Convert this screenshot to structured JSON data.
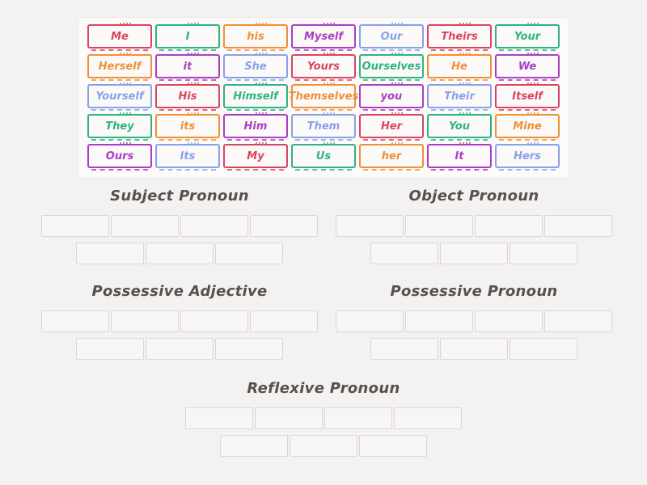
{
  "page": {
    "background": "#f4f2f1",
    "panel_background": "#fcfbfa"
  },
  "palette": {
    "red": "#d9455f",
    "green": "#2db482",
    "orange": "#ef9036",
    "purple": "#aa3ec3",
    "blue": "#88a0ea",
    "slot_border": "#dad6d4",
    "heading_text": "#56514f"
  },
  "word_bank": {
    "tiles": [
      {
        "label": "Me",
        "color": "red"
      },
      {
        "label": "I",
        "color": "green"
      },
      {
        "label": "his",
        "color": "orange"
      },
      {
        "label": "Myself",
        "color": "purple"
      },
      {
        "label": "Our",
        "color": "blue"
      },
      {
        "label": "Theirs",
        "color": "red"
      },
      {
        "label": "Your",
        "color": "green"
      },
      {
        "label": "Herself",
        "color": "orange"
      },
      {
        "label": "it",
        "color": "purple"
      },
      {
        "label": "She",
        "color": "blue"
      },
      {
        "label": "Yours",
        "color": "red"
      },
      {
        "label": "Ourselves",
        "color": "green"
      },
      {
        "label": "He",
        "color": "orange"
      },
      {
        "label": "We",
        "color": "purple"
      },
      {
        "label": "Yourself",
        "color": "blue"
      },
      {
        "label": "His",
        "color": "red"
      },
      {
        "label": "Himself",
        "color": "green"
      },
      {
        "label": "Themselves",
        "color": "orange"
      },
      {
        "label": "you",
        "color": "purple"
      },
      {
        "label": "Their",
        "color": "blue"
      },
      {
        "label": "Itself",
        "color": "red"
      },
      {
        "label": "They",
        "color": "green"
      },
      {
        "label": "its",
        "color": "orange"
      },
      {
        "label": "Him",
        "color": "purple"
      },
      {
        "label": "Them",
        "color": "blue"
      },
      {
        "label": "Her",
        "color": "red"
      },
      {
        "label": "You",
        "color": "green"
      },
      {
        "label": "Mine",
        "color": "orange"
      },
      {
        "label": "Ours",
        "color": "purple"
      },
      {
        "label": "Its",
        "color": "blue"
      },
      {
        "label": "My",
        "color": "red"
      },
      {
        "label": "Us",
        "color": "green"
      },
      {
        "label": "her",
        "color": "orange"
      },
      {
        "label": "It",
        "color": "purple"
      },
      {
        "label": "Hers",
        "color": "blue"
      }
    ]
  },
  "groups": [
    {
      "title": "Subject Pronoun",
      "slot_rows": [
        4,
        3
      ],
      "position": "top-left"
    },
    {
      "title": "Object Pronoun",
      "slot_rows": [
        4,
        3
      ],
      "position": "top-right"
    },
    {
      "title": "Possessive Adjective",
      "slot_rows": [
        4,
        3
      ],
      "position": "middle-left"
    },
    {
      "title": "Possessive Pronoun",
      "slot_rows": [
        4,
        3
      ],
      "position": "middle-right"
    },
    {
      "title": "Reflexive Pronoun",
      "slot_rows": [
        4,
        3
      ],
      "position": "bottom-center"
    }
  ]
}
